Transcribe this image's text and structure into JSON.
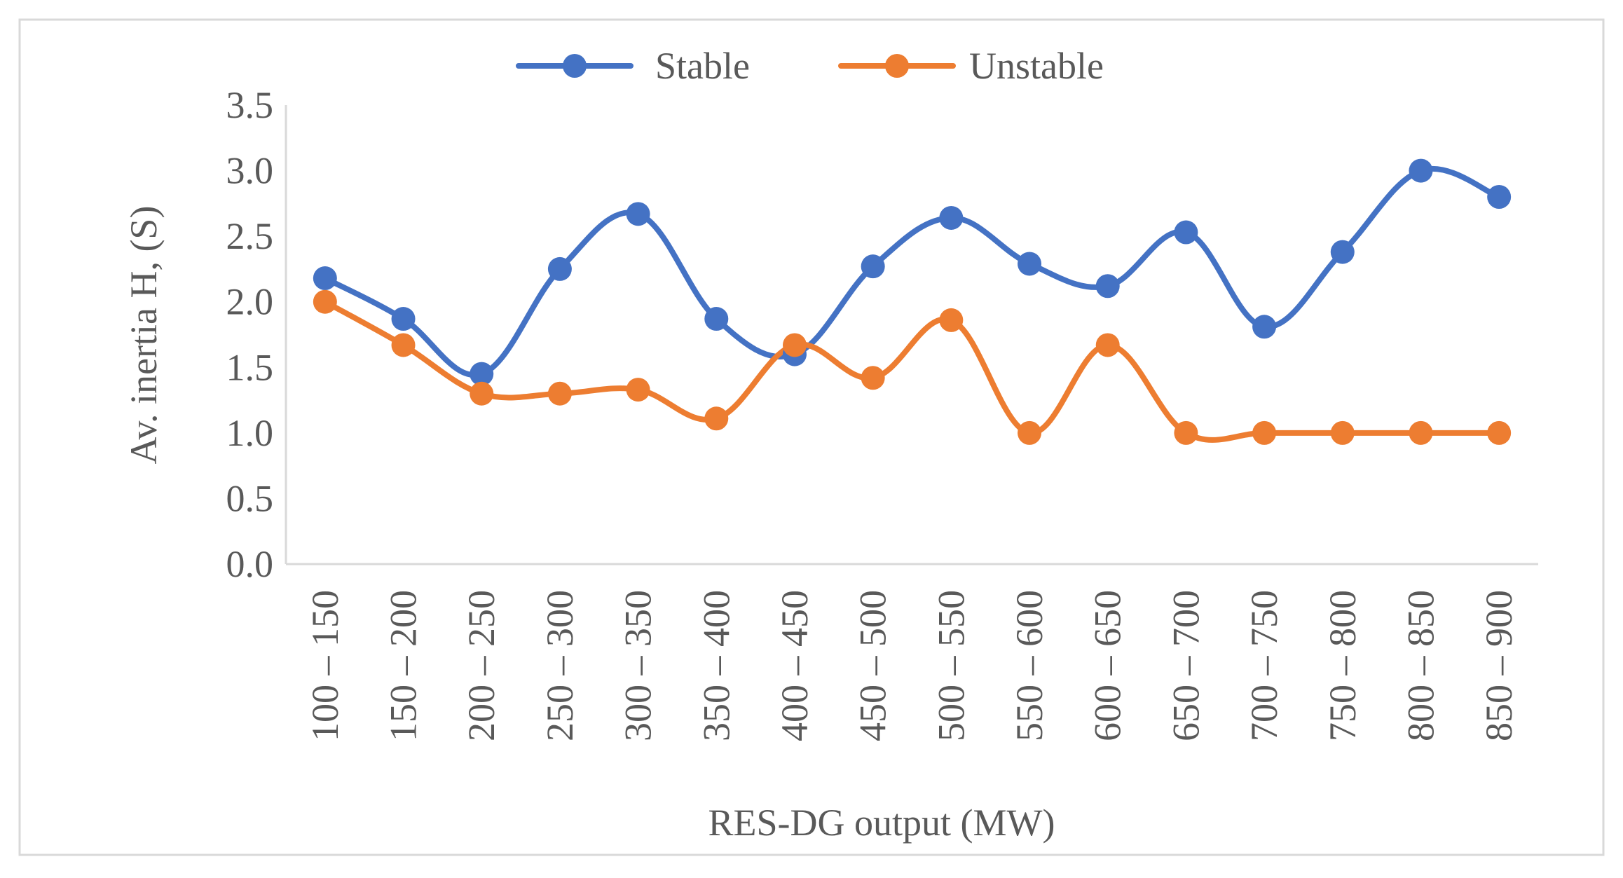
{
  "chart_data": {
    "type": "line",
    "title": "",
    "xlabel": "RES-DG output (MW)",
    "ylabel": "Av. inertia H, (S)",
    "ylim": [
      0,
      3.5
    ],
    "ytick_labels": [
      "0.0",
      "0.5",
      "1.0",
      "1.5",
      "2.0",
      "2.5",
      "3.0",
      "3.5"
    ],
    "categories": [
      "100 – 150",
      "150 – 200",
      "200 – 250",
      "250 – 300",
      "300 – 350",
      "350 – 400",
      "400 – 450",
      "450 – 500",
      "500 – 550",
      "550 – 600",
      "600 – 650",
      "650 – 700",
      "700 – 750",
      "750 – 800",
      "800 – 850",
      "850 – 900"
    ],
    "legend_position": "top-center",
    "grid": false,
    "smooth": true,
    "series": [
      {
        "name": "Stable",
        "color": "#4472C4",
        "values": [
          2.18,
          1.87,
          1.45,
          2.25,
          2.67,
          1.87,
          1.6,
          2.27,
          2.64,
          2.29,
          2.12,
          2.53,
          1.81,
          2.38,
          3.0,
          2.8
        ]
      },
      {
        "name": "Unstable",
        "color": "#ED7D31",
        "values": [
          2.0,
          1.67,
          1.3,
          1.3,
          1.33,
          1.11,
          1.67,
          1.42,
          1.86,
          1.0,
          1.67,
          1.0,
          1.0,
          1.0,
          1.0,
          1.0
        ]
      }
    ]
  }
}
